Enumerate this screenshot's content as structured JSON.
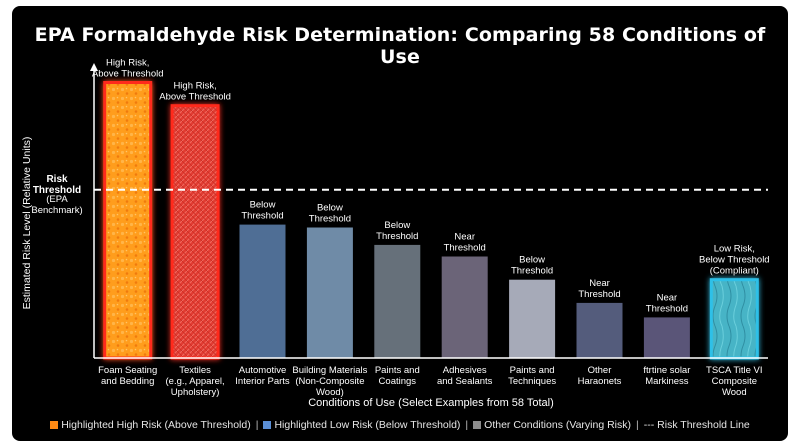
{
  "colors": {
    "high_risk": "#ff8a14",
    "high_risk_glow": "#ff2a1a",
    "textiles": "#e02a2a",
    "low_risk": "#2ec0e8",
    "threshold_line": "#ffffff"
  },
  "chart_data": {
    "type": "bar",
    "title": "EPA Formaldehyde Risk Determination: Comparing 58 Conditions of Use",
    "xlabel": "Conditions of Use (Select Examples from 58 Total)",
    "ylabel": "Estimated Risk Level (Relative Units)",
    "ylim": [
      0,
      100
    ],
    "grid": false,
    "threshold": {
      "value": 58,
      "label_lines": [
        "Risk",
        "Threshold"
      ],
      "sublabel_lines": [
        "(EPA",
        "Benchmark)"
      ]
    },
    "categories": [
      "Foam Seating and Bedding",
      "Textiles (e.g., Apparel, Upholstery)",
      "Automotive Interior Parts",
      "Building Materials (Non-Composite Wood)",
      "Paints and Coatings",
      "Adhesives and Sealants",
      "Paints and Techniques",
      "Other Haraonets",
      "ftrtine solar Markiness",
      "TSCA Title VI Composite Wood"
    ],
    "category_label_lines": [
      [
        "Foam Seating",
        "and Bedding"
      ],
      [
        "Textiles",
        "(e.g., Apparel,",
        "Upholstery)"
      ],
      [
        "Automotive",
        "Interior Parts"
      ],
      [
        "Building Materials",
        "(Non-Composite",
        "Wood)"
      ],
      [
        "Paints and",
        "Coatings"
      ],
      [
        "Adhesives",
        "and Sealants"
      ],
      [
        "Paints and",
        "Techniques"
      ],
      [
        "Other",
        "Haraonets"
      ],
      [
        "ftrtine solar",
        "Markiness"
      ],
      [
        "TSCA Title VI",
        "Composite",
        "Wood"
      ]
    ],
    "values": [
      95,
      87,
      46,
      45,
      39,
      35,
      27,
      19,
      14,
      27
    ],
    "bar_styles": [
      "high-foam",
      "high-textile",
      "other",
      "other",
      "other",
      "other",
      "other",
      "other",
      "other",
      "low"
    ],
    "bar_colors": [
      "#ff9a1a",
      "#e63a2f",
      "#4f6e95",
      "#6f8ba7",
      "#66707a",
      "#6b6478",
      "#a6aab8",
      "#545c7c",
      "#5a5578",
      "#48b8c8"
    ],
    "data_labels": [
      [
        "High Risk,",
        "Above Threshold"
      ],
      [
        "High Risk,",
        "Above Threshold"
      ],
      [
        "Below",
        "Threshold"
      ],
      [
        "Below",
        "Threshold"
      ],
      [
        "Below",
        "Threshold"
      ],
      [
        "Near",
        "Threshold"
      ],
      [
        "Below",
        "Threshold"
      ],
      [
        "Near",
        "Threshold"
      ],
      [
        "Near",
        "Threshold"
      ],
      [
        "Low Risk,",
        "Below Threshold",
        "(Compliant)"
      ]
    ],
    "legend": {
      "placement": "bottom",
      "items": [
        {
          "label": "Highlighted High Risk (Above Threshold)",
          "color": "#ff8a14"
        },
        {
          "label": "Highlighted Low Risk (Below Threshold)",
          "color": "#5b8fd6"
        },
        {
          "label": "Other Conditions (Varying Risk)",
          "color": "#8c8c8c"
        },
        {
          "label": "--- Risk Threshold Line",
          "color": ""
        }
      ]
    }
  }
}
